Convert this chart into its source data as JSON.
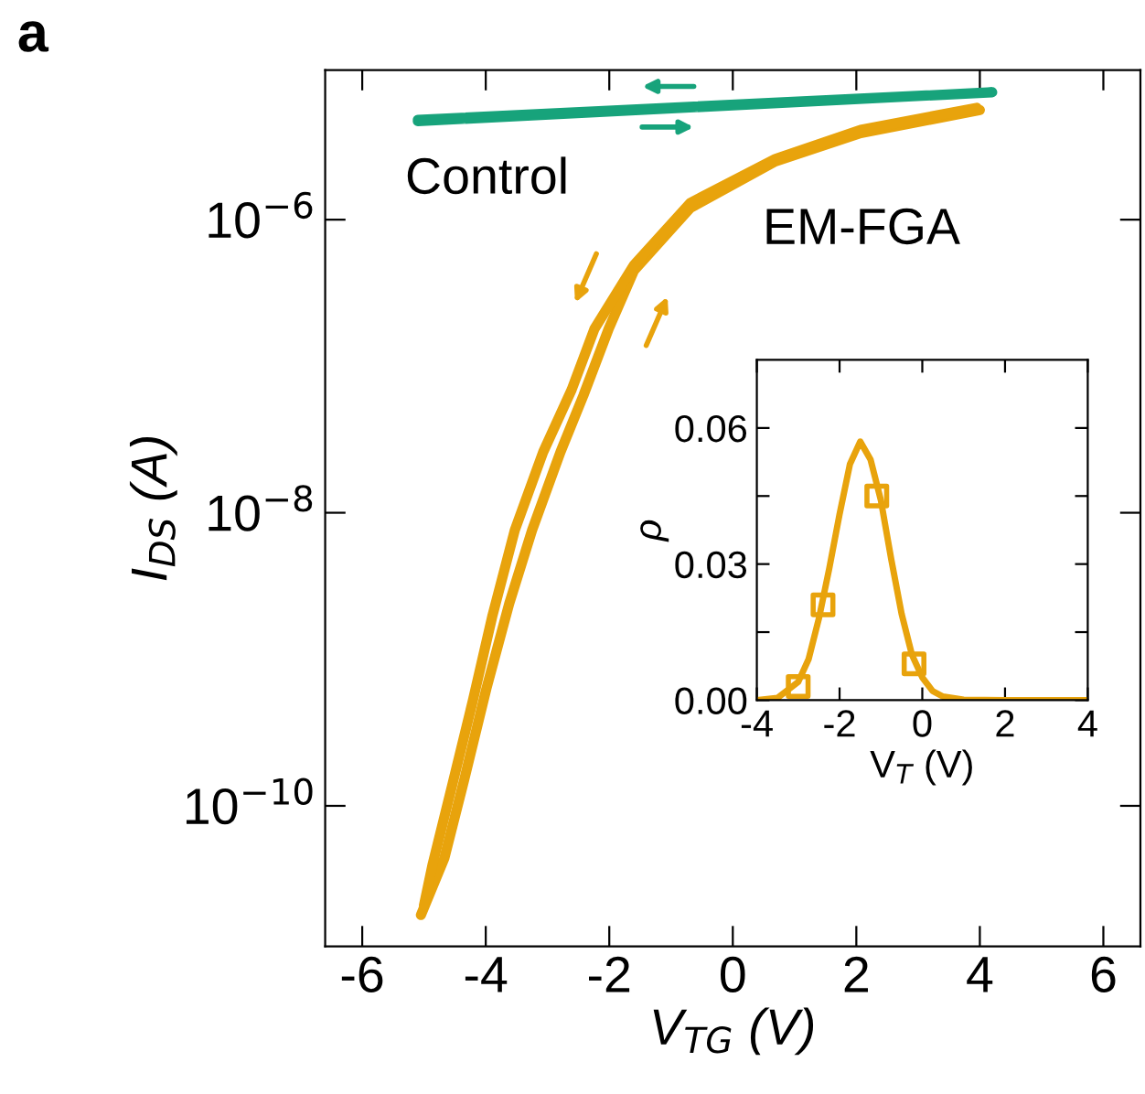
{
  "chart_data": [
    {
      "type": "line",
      "xlabel": "V$_{TG}$ (V)",
      "ylabel": "I$_{DS}$ (A)",
      "log": "y",
      "xlim": [
        -6.6,
        6.6
      ],
      "ylim": [
        1.1e-11,
        1.05e-05
      ],
      "xticks": [
        -6,
        -4,
        -2,
        0,
        2,
        4,
        6
      ],
      "yticks": [
        {
          "value": 1e-10,
          "label": "10$^{−10}$"
        },
        {
          "value": 1e-08,
          "label": "10$^{−8}$"
        },
        {
          "value": 1e-06,
          "label": "10$^{−6}$"
        }
      ],
      "grid": false,
      "legend": false,
      "marker": "none",
      "line_style": "solid",
      "annotations": [
        "a"
      ],
      "series": [
        {
          "name": "Control",
          "color": "#17a37b",
          "x": [
            -5.1,
            4.2,
            -5.1
          ],
          "values": [
            4.7e-06,
            7.4e-06,
            4.8e-06
          ]
        },
        {
          "name": "EM-FGA",
          "color": "#e8a30c",
          "x": [
            -5.05,
            -4.67,
            -4.35,
            -3.99,
            -3.62,
            -3.25,
            -2.79,
            -2.42,
            -2.01,
            -1.6,
            -0.69,
            0.69,
            2.07,
            4.0
          ],
          "values": [
            1.8e-11,
            4.4e-11,
            1.5e-10,
            6.3e-10,
            2.4e-09,
            7.6e-09,
            2.6e-08,
            6.3e-08,
            1.8e-07,
            4.5e-07,
            1.2e-06,
            2.5e-06,
            3.9e-06,
            5.6e-06
          ]
        },
        {
          "color": "#e8a30c",
          "x": [
            3.95,
            2.07,
            0.69,
            -0.69,
            -1.6,
            -2.24,
            -2.61,
            -3.07,
            -3.53,
            -3.89,
            -4.21,
            -4.54,
            -4.86,
            -5.0
          ],
          "values": [
            5.8e-06,
            4.1e-06,
            2.6e-06,
            1.3e-06,
            4.9e-07,
            1.8e-07,
            6.9e-08,
            2.6e-08,
            7.6e-09,
            2e-09,
            5.2e-10,
            1.4e-10,
            4e-11,
            2.1e-11
          ]
        }
      ]
    },
    {
      "type": "line",
      "xlabel": "V$_{T}$ (V)",
      "ylabel": "ρ",
      "xlim": [
        -4,
        4
      ],
      "ylim": [
        0,
        0.075
      ],
      "xticks": [
        -4,
        -2,
        0,
        2,
        4
      ],
      "yticks": [
        {
          "value": 0,
          "label": "0.00"
        },
        {
          "value": 0.015,
          "label": null
        },
        {
          "value": 0.03,
          "label": "0.03"
        },
        {
          "value": 0.045,
          "label": null
        },
        {
          "value": 0.06,
          "label": "0.06"
        }
      ],
      "grid": false,
      "legend": false,
      "series": [
        {
          "type": "line",
          "marker": "none",
          "color": "#e8a30c",
          "x": [
            -4,
            -3.5,
            -3,
            -2.75,
            -2.5,
            -2.25,
            -2,
            -1.75,
            -1.5,
            -1.25,
            -1,
            -0.75,
            -0.5,
            -0.25,
            0,
            0.25,
            0.5,
            1,
            2,
            3,
            4
          ],
          "values": [
            0,
            0.0005,
            0.004,
            0.009,
            0.018,
            0.029,
            0.041,
            0.052,
            0.057,
            0.053,
            0.044,
            0.031,
            0.019,
            0.01,
            0.005,
            0.002,
            0.0008,
            0.0001,
            0,
            0,
            0
          ]
        },
        {
          "type": "scatter",
          "marker": "square",
          "color": "#e8a30c",
          "x": [
            -3.0,
            -2.4,
            -1.1,
            -0.2
          ],
          "values": [
            0.003,
            0.021,
            0.045,
            0.008
          ]
        }
      ]
    }
  ]
}
